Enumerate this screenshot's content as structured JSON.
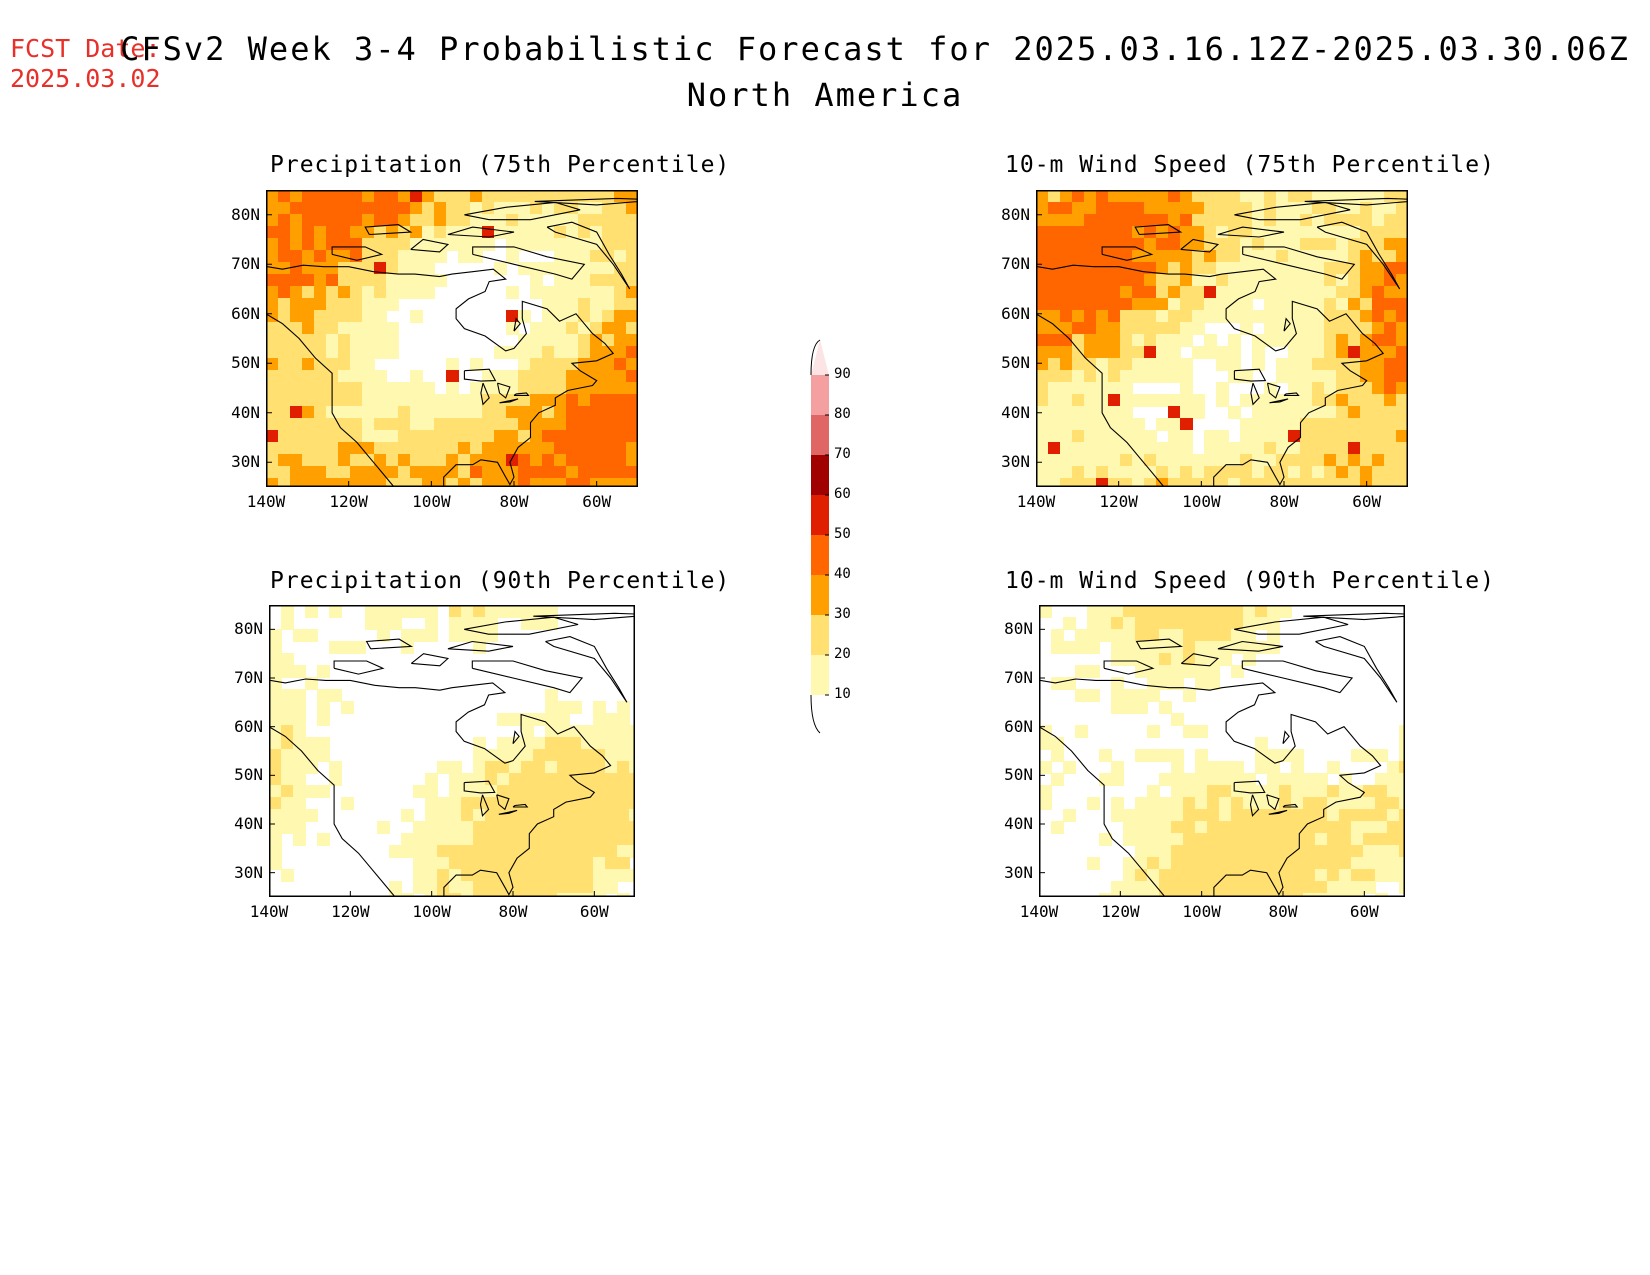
{
  "header": {
    "fcst_label": "FCST Date:",
    "fcst_date": "2025.03.02",
    "title_line1": "CFSv2 Week 3-4 Probabilistic Forecast for 2025.03.16.12Z-2025.03.30.06Z",
    "title_line2": "North America"
  },
  "panels": [
    {
      "title": "Precipitation (75th Percentile)",
      "intensity": "high"
    },
    {
      "title": "10-m Wind Speed (75th Percentile)",
      "intensity": "high"
    },
    {
      "title": "Precipitation (90th Percentile)",
      "intensity": "low"
    },
    {
      "title": "10-m Wind Speed (90th Percentile)",
      "intensity": "low"
    }
  ],
  "axes": {
    "lat_labels": [
      "80N",
      "70N",
      "60N",
      "50N",
      "40N",
      "30N"
    ],
    "lon_labels": [
      "140W",
      "120W",
      "100W",
      "80W",
      "60W"
    ]
  },
  "colorbar": {
    "labels": [
      "90",
      "80",
      "70",
      "60",
      "50",
      "40",
      "30",
      "20",
      "10"
    ],
    "colors": [
      "#fce4e4",
      "#f4a0a0",
      "#e06666",
      "#a00000",
      "#e01e00",
      "#ff6600",
      "#ffa000",
      "#ffe070",
      "#fff8b0"
    ]
  }
}
